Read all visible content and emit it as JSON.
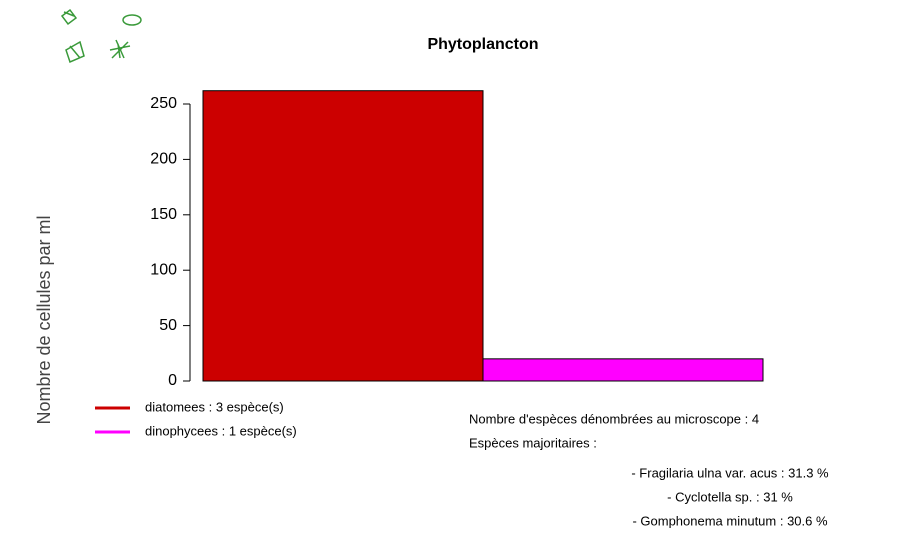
{
  "chart_data": {
    "type": "bar",
    "title": "Phytoplancton",
    "y_label": "Nombre de cellules par ml",
    "series": [
      {
        "name": "diatomees : 3 espèce(s)",
        "color": "#cc0000",
        "values": [
          262
        ]
      },
      {
        "name": "dinophycees : 1 espèce(s)",
        "color": "#ff00ff",
        "values": [
          20
        ]
      }
    ],
    "ylim": [
      0,
      250
    ],
    "yticks": [
      0,
      50,
      100,
      150,
      200,
      250
    ],
    "legend": "bottom-left",
    "annotations": [
      "Nombre d'espèces dénombrées au microscope : 4",
      "Espèces majoritaires :"
    ],
    "species": [
      "- Fragilaria ulna var. acus : 31.3 %",
      "- Cyclotella sp. : 31 %",
      "- Gomphonema minutum : 30.6 %"
    ],
    "species_color": "#cc0000"
  }
}
